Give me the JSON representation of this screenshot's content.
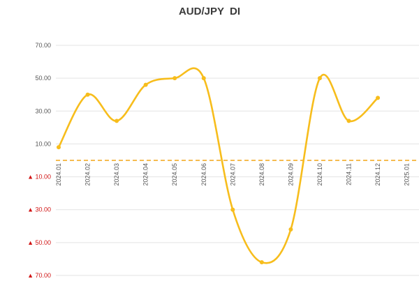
{
  "chart_data": {
    "type": "line",
    "title": "AUD/JPY  DI",
    "xlabel": "",
    "ylabel": "",
    "categories": [
      "2024.01",
      "2024.02",
      "2024.03",
      "2024.04",
      "2024.05",
      "2024.06",
      "2024.07",
      "2024.08",
      "2024.09",
      "2024.10",
      "2024.11",
      "2024.12",
      "2025.01"
    ],
    "series": [
      {
        "values": [
          8,
          40,
          24,
          46,
          50,
          50,
          -30,
          -62,
          -42,
          50,
          24,
          38,
          null
        ]
      }
    ],
    "ylim": [
      -70,
      70
    ],
    "yticks": [
      {
        "value": 70,
        "label": "70.00",
        "negative": false
      },
      {
        "value": 50,
        "label": "50.00",
        "negative": false
      },
      {
        "value": 30,
        "label": "30.00",
        "negative": false
      },
      {
        "value": 10,
        "label": "10.00",
        "negative": false
      },
      {
        "value": -10,
        "label": "▲ 10.00",
        "negative": true
      },
      {
        "value": -30,
        "label": "▲ 30.00",
        "negative": true
      },
      {
        "value": -50,
        "label": "▲ 50.00",
        "negative": true
      },
      {
        "value": -70,
        "label": "▲ 70.00",
        "negative": true
      }
    ],
    "reference_line": {
      "value": 0,
      "style": "dashed",
      "color": "#f2a516"
    },
    "grid": true,
    "legend": "none",
    "colors": {
      "series": "#f7bd1c",
      "grid": "#e3e3e3",
      "negative_tick": "#d11414",
      "positive_tick": "#555555"
    }
  }
}
